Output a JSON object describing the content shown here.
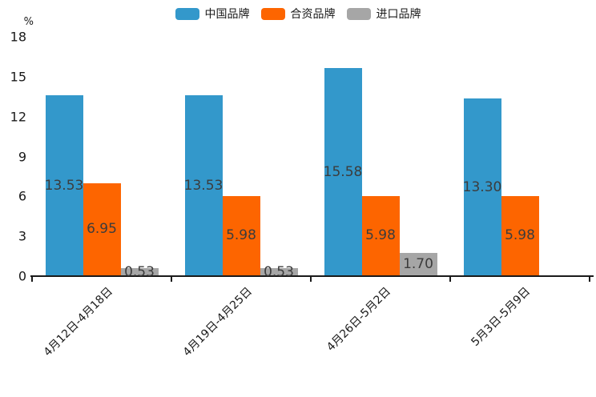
{
  "chart_data": {
    "type": "bar",
    "title": "",
    "xlabel": "",
    "ylabel": "%",
    "ylim": [
      0,
      18
    ],
    "yticks": [
      0,
      3,
      6,
      9,
      12,
      15,
      18
    ],
    "grid": false,
    "legend_position": "top-center",
    "categories": [
      "4月12日-4月18日",
      "4月19日-4月25日",
      "4月26日-5月2日",
      "5月3日-5月9日"
    ],
    "series": [
      {
        "name": "中国品牌",
        "color": "#3398CB",
        "values": [
          13.53,
          13.53,
          15.58,
          13.3
        ]
      },
      {
        "name": "合资品牌",
        "color": "#FD6500",
        "values": [
          6.95,
          5.98,
          5.98,
          5.98
        ]
      },
      {
        "name": "进口品牌",
        "color": "#A6A6A6",
        "values": [
          0.53,
          0.53,
          1.7,
          null
        ]
      }
    ],
    "value_label_color": "#3C3C3C",
    "axis_color": "#1A1A1A"
  }
}
